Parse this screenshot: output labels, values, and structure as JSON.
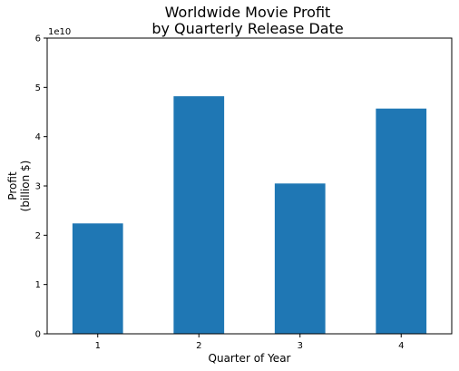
{
  "chart_data": {
    "type": "bar",
    "title": [
      "Worldwide Movie Profit",
      "by Quarterly Release Date"
    ],
    "xlabel": "Quarter of Year",
    "ylabel": [
      "Profit",
      "(billion $)"
    ],
    "categories": [
      "1",
      "2",
      "3",
      "4"
    ],
    "values": [
      22400000000,
      48200000000,
      30500000000,
      45700000000
    ],
    "ylim": [
      0,
      60000000000
    ],
    "y_ticks": [
      0,
      10000000000,
      20000000000,
      30000000000,
      40000000000,
      50000000000,
      60000000000
    ],
    "y_tick_labels": [
      "0",
      "1",
      "2",
      "3",
      "4",
      "5",
      "6"
    ],
    "y_offset_label": "1e10",
    "bar_color": "#1f77b4",
    "grid": false,
    "legend": "none"
  }
}
